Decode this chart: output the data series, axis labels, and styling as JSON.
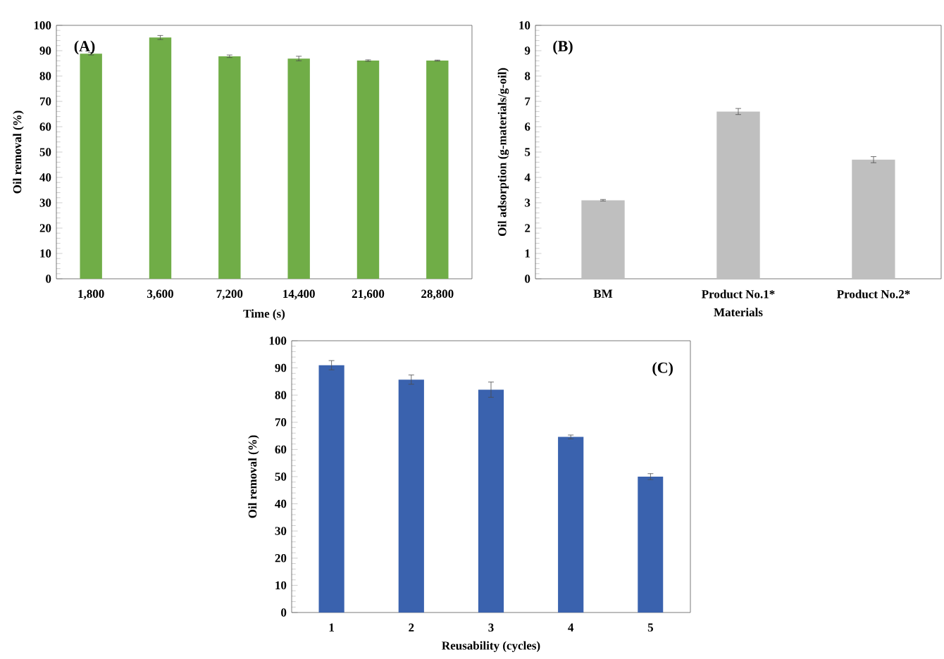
{
  "chart_data": [
    {
      "type": "bar",
      "categories": [
        "1,800",
        "3,600",
        "7,200",
        "14,400",
        "21,600",
        "28,800"
      ],
      "values": [
        88.8,
        95.2,
        87.8,
        86.9,
        86.1,
        86.1
      ],
      "errors": [
        0.5,
        0.8,
        0.5,
        0.9,
        0.3,
        0.2
      ],
      "color": "#70ad47",
      "xlabel": "Time (s)",
      "ylabel": "Oil removal (%)",
      "ylim": [
        0,
        100
      ],
      "yticks": [
        0,
        10,
        20,
        30,
        40,
        50,
        60,
        70,
        80,
        90,
        100
      ],
      "annotations": [
        "(A)"
      ]
    },
    {
      "type": "bar",
      "categories": [
        "BM",
        "Product No.1*",
        "Product No.2*"
      ],
      "values": [
        3.1,
        6.6,
        4.7
      ],
      "errors": [
        0.03,
        0.12,
        0.12
      ],
      "color": "#bfbfbf",
      "xlabel": "Materials",
      "ylabel": "Oil adsorption (g-materials/g-oil)",
      "ylim": [
        0,
        10
      ],
      "yticks": [
        0,
        1,
        2,
        3,
        4,
        5,
        6,
        7,
        8,
        9,
        10
      ],
      "annotations": [
        "(B)"
      ]
    },
    {
      "type": "bar",
      "categories": [
        "1",
        "2",
        "3",
        "4",
        "5"
      ],
      "values": [
        91,
        85.7,
        82,
        64.6,
        50
      ],
      "errors": [
        1.7,
        1.7,
        2.8,
        0.7,
        1.1
      ],
      "color": "#3a62ae",
      "xlabel": "Reusability (cycles)",
      "ylabel": "Oil removal (%)",
      "ylim": [
        0,
        100
      ],
      "yticks": [
        0,
        10,
        20,
        30,
        40,
        50,
        60,
        70,
        80,
        90,
        100
      ],
      "annotations": [
        "(C)"
      ]
    }
  ]
}
